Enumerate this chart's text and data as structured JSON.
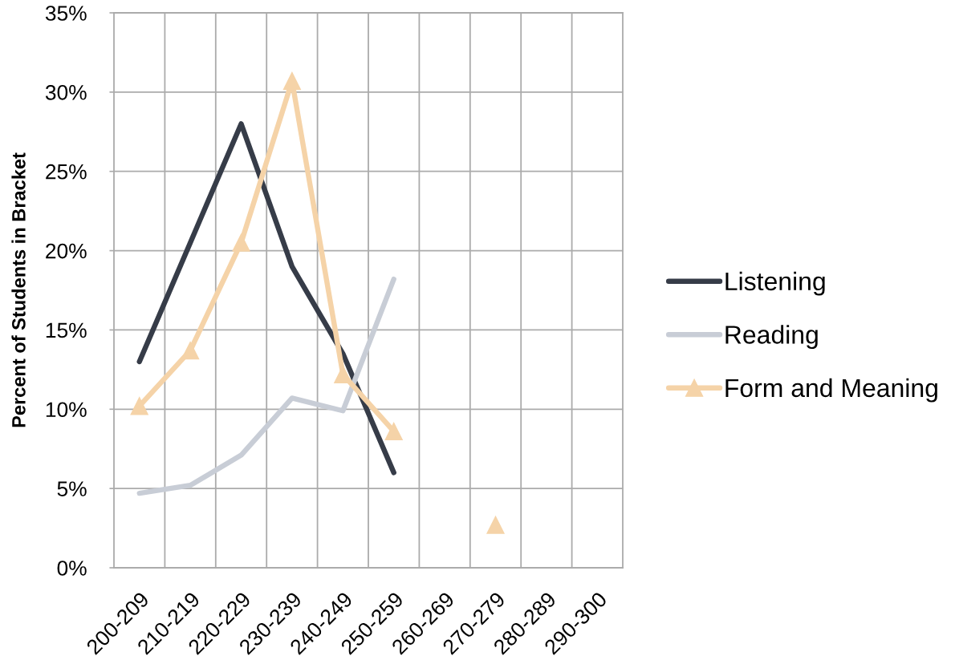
{
  "chart_data": {
    "type": "line",
    "ylabel": "Percent of Students in Bracket",
    "categories": [
      "200-209",
      "210-219",
      "220-229",
      "230-239",
      "240-249",
      "250-259",
      "260-269",
      "270-279",
      "280-289",
      "290-300"
    ],
    "series": [
      {
        "name": "Listening",
        "color": "#363c48",
        "values": [
          13,
          20.5,
          28,
          19,
          13.5,
          6,
          null,
          null,
          null,
          null
        ],
        "marker": "none"
      },
      {
        "name": "Reading",
        "color": "#c8cdd6",
        "values": [
          4.7,
          5.2,
          7.1,
          10.7,
          9.9,
          18.2,
          null,
          null,
          null,
          null
        ],
        "marker": "none"
      },
      {
        "name": "Form and Meaning",
        "color": "#f5d3a8",
        "values": [
          10.2,
          13.7,
          20.5,
          30.7,
          12.2,
          8.6,
          null,
          2.7,
          null,
          null
        ],
        "marker": "triangle"
      }
    ],
    "ylim": [
      0,
      35
    ],
    "yticks": [
      {
        "value": 0,
        "label": "0%"
      },
      {
        "value": 5,
        "label": "5%"
      },
      {
        "value": 10,
        "label": "10%"
      },
      {
        "value": 15,
        "label": "15%"
      },
      {
        "value": 20,
        "label": "20%"
      },
      {
        "value": 25,
        "label": "25%"
      },
      {
        "value": 30,
        "label": "30%"
      },
      {
        "value": 35,
        "label": "35%"
      }
    ],
    "grid": true,
    "legend": "right",
    "line_style": "solid"
  }
}
